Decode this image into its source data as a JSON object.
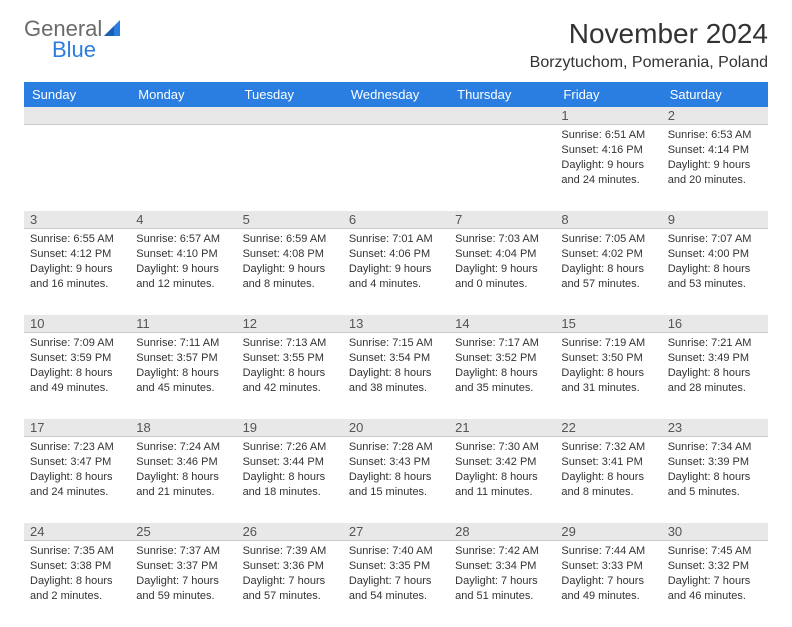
{
  "brand": {
    "word1": "General",
    "word2": "Blue",
    "color": "#2a7de1"
  },
  "title": "November 2024",
  "location": "Borzytuchom, Pomerania, Poland",
  "header_bg": "#2a7de1",
  "header_fg": "#ffffff",
  "num_bg": "#e8e8e8",
  "weekdays": [
    "Sunday",
    "Monday",
    "Tuesday",
    "Wednesday",
    "Thursday",
    "Friday",
    "Saturday"
  ],
  "weeks": [
    [
      {
        "n": "",
        "sr": "",
        "ss": "",
        "dl": ""
      },
      {
        "n": "",
        "sr": "",
        "ss": "",
        "dl": ""
      },
      {
        "n": "",
        "sr": "",
        "ss": "",
        "dl": ""
      },
      {
        "n": "",
        "sr": "",
        "ss": "",
        "dl": ""
      },
      {
        "n": "",
        "sr": "",
        "ss": "",
        "dl": ""
      },
      {
        "n": "1",
        "sr": "Sunrise: 6:51 AM",
        "ss": "Sunset: 4:16 PM",
        "dl": "Daylight: 9 hours and 24 minutes."
      },
      {
        "n": "2",
        "sr": "Sunrise: 6:53 AM",
        "ss": "Sunset: 4:14 PM",
        "dl": "Daylight: 9 hours and 20 minutes."
      }
    ],
    [
      {
        "n": "3",
        "sr": "Sunrise: 6:55 AM",
        "ss": "Sunset: 4:12 PM",
        "dl": "Daylight: 9 hours and 16 minutes."
      },
      {
        "n": "4",
        "sr": "Sunrise: 6:57 AM",
        "ss": "Sunset: 4:10 PM",
        "dl": "Daylight: 9 hours and 12 minutes."
      },
      {
        "n": "5",
        "sr": "Sunrise: 6:59 AM",
        "ss": "Sunset: 4:08 PM",
        "dl": "Daylight: 9 hours and 8 minutes."
      },
      {
        "n": "6",
        "sr": "Sunrise: 7:01 AM",
        "ss": "Sunset: 4:06 PM",
        "dl": "Daylight: 9 hours and 4 minutes."
      },
      {
        "n": "7",
        "sr": "Sunrise: 7:03 AM",
        "ss": "Sunset: 4:04 PM",
        "dl": "Daylight: 9 hours and 0 minutes."
      },
      {
        "n": "8",
        "sr": "Sunrise: 7:05 AM",
        "ss": "Sunset: 4:02 PM",
        "dl": "Daylight: 8 hours and 57 minutes."
      },
      {
        "n": "9",
        "sr": "Sunrise: 7:07 AM",
        "ss": "Sunset: 4:00 PM",
        "dl": "Daylight: 8 hours and 53 minutes."
      }
    ],
    [
      {
        "n": "10",
        "sr": "Sunrise: 7:09 AM",
        "ss": "Sunset: 3:59 PM",
        "dl": "Daylight: 8 hours and 49 minutes."
      },
      {
        "n": "11",
        "sr": "Sunrise: 7:11 AM",
        "ss": "Sunset: 3:57 PM",
        "dl": "Daylight: 8 hours and 45 minutes."
      },
      {
        "n": "12",
        "sr": "Sunrise: 7:13 AM",
        "ss": "Sunset: 3:55 PM",
        "dl": "Daylight: 8 hours and 42 minutes."
      },
      {
        "n": "13",
        "sr": "Sunrise: 7:15 AM",
        "ss": "Sunset: 3:54 PM",
        "dl": "Daylight: 8 hours and 38 minutes."
      },
      {
        "n": "14",
        "sr": "Sunrise: 7:17 AM",
        "ss": "Sunset: 3:52 PM",
        "dl": "Daylight: 8 hours and 35 minutes."
      },
      {
        "n": "15",
        "sr": "Sunrise: 7:19 AM",
        "ss": "Sunset: 3:50 PM",
        "dl": "Daylight: 8 hours and 31 minutes."
      },
      {
        "n": "16",
        "sr": "Sunrise: 7:21 AM",
        "ss": "Sunset: 3:49 PM",
        "dl": "Daylight: 8 hours and 28 minutes."
      }
    ],
    [
      {
        "n": "17",
        "sr": "Sunrise: 7:23 AM",
        "ss": "Sunset: 3:47 PM",
        "dl": "Daylight: 8 hours and 24 minutes."
      },
      {
        "n": "18",
        "sr": "Sunrise: 7:24 AM",
        "ss": "Sunset: 3:46 PM",
        "dl": "Daylight: 8 hours and 21 minutes."
      },
      {
        "n": "19",
        "sr": "Sunrise: 7:26 AM",
        "ss": "Sunset: 3:44 PM",
        "dl": "Daylight: 8 hours and 18 minutes."
      },
      {
        "n": "20",
        "sr": "Sunrise: 7:28 AM",
        "ss": "Sunset: 3:43 PM",
        "dl": "Daylight: 8 hours and 15 minutes."
      },
      {
        "n": "21",
        "sr": "Sunrise: 7:30 AM",
        "ss": "Sunset: 3:42 PM",
        "dl": "Daylight: 8 hours and 11 minutes."
      },
      {
        "n": "22",
        "sr": "Sunrise: 7:32 AM",
        "ss": "Sunset: 3:41 PM",
        "dl": "Daylight: 8 hours and 8 minutes."
      },
      {
        "n": "23",
        "sr": "Sunrise: 7:34 AM",
        "ss": "Sunset: 3:39 PM",
        "dl": "Daylight: 8 hours and 5 minutes."
      }
    ],
    [
      {
        "n": "24",
        "sr": "Sunrise: 7:35 AM",
        "ss": "Sunset: 3:38 PM",
        "dl": "Daylight: 8 hours and 2 minutes."
      },
      {
        "n": "25",
        "sr": "Sunrise: 7:37 AM",
        "ss": "Sunset: 3:37 PM",
        "dl": "Daylight: 7 hours and 59 minutes."
      },
      {
        "n": "26",
        "sr": "Sunrise: 7:39 AM",
        "ss": "Sunset: 3:36 PM",
        "dl": "Daylight: 7 hours and 57 minutes."
      },
      {
        "n": "27",
        "sr": "Sunrise: 7:40 AM",
        "ss": "Sunset: 3:35 PM",
        "dl": "Daylight: 7 hours and 54 minutes."
      },
      {
        "n": "28",
        "sr": "Sunrise: 7:42 AM",
        "ss": "Sunset: 3:34 PM",
        "dl": "Daylight: 7 hours and 51 minutes."
      },
      {
        "n": "29",
        "sr": "Sunrise: 7:44 AM",
        "ss": "Sunset: 3:33 PM",
        "dl": "Daylight: 7 hours and 49 minutes."
      },
      {
        "n": "30",
        "sr": "Sunrise: 7:45 AM",
        "ss": "Sunset: 3:32 PM",
        "dl": "Daylight: 7 hours and 46 minutes."
      }
    ]
  ]
}
